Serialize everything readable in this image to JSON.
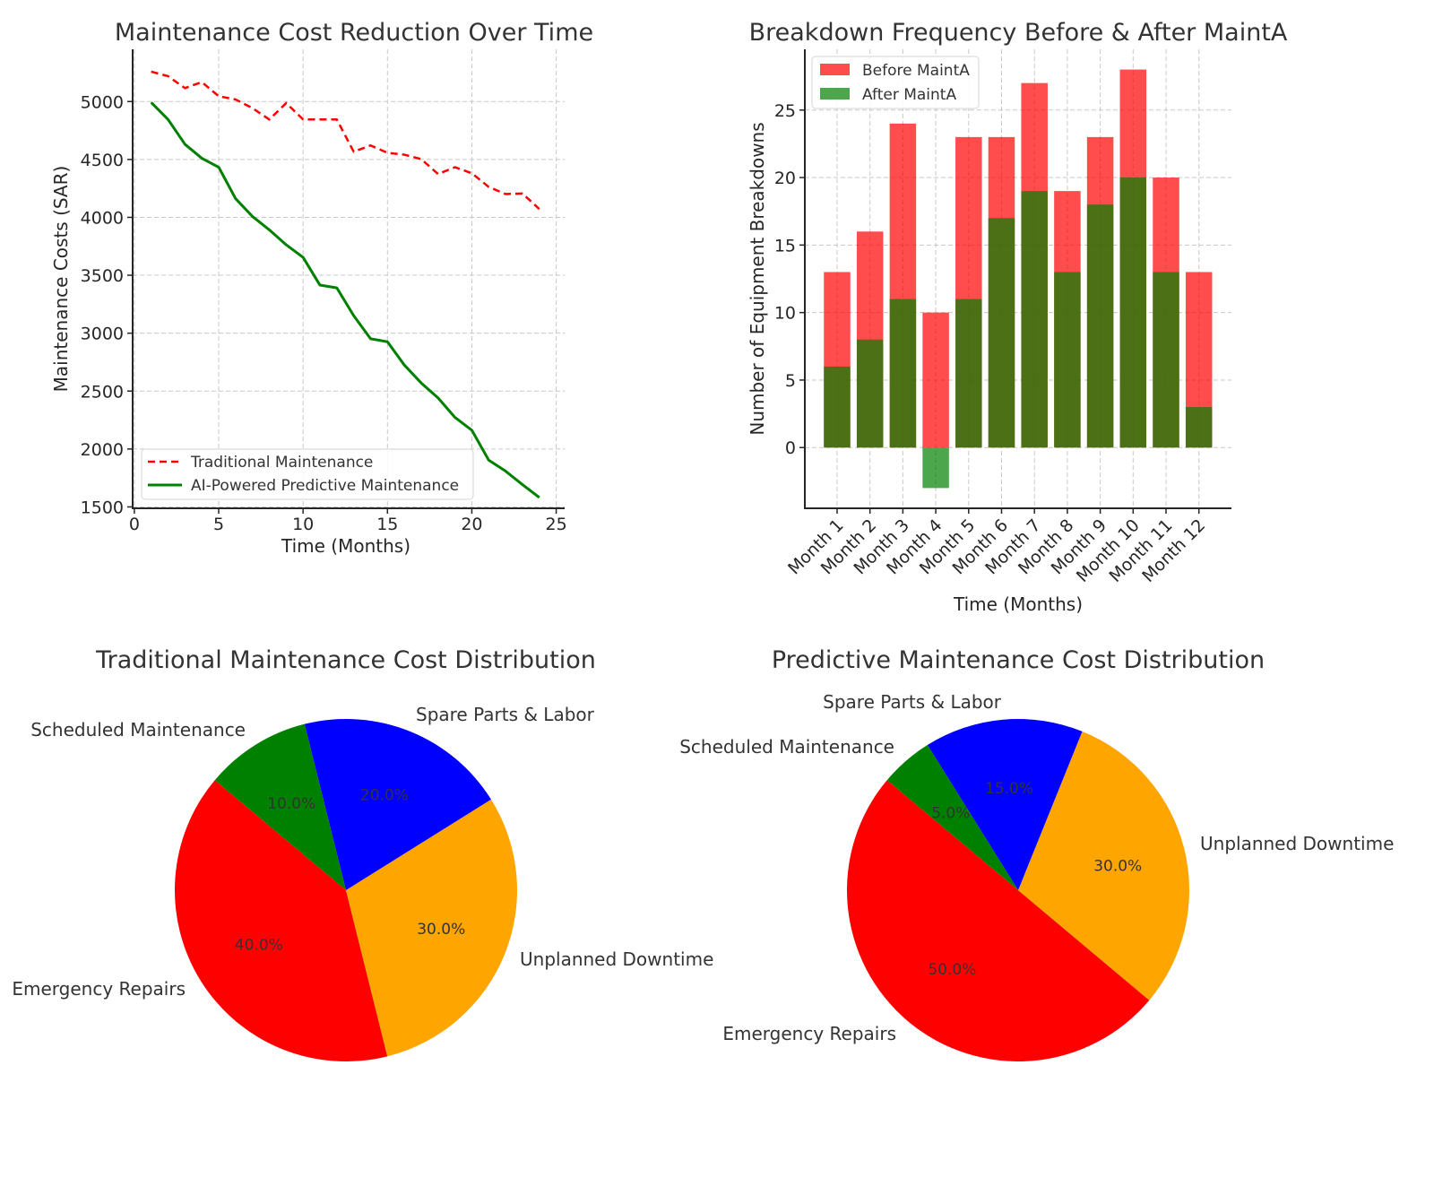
{
  "chart_data": [
    {
      "type": "line",
      "title": "Maintenance Cost Reduction Over Time",
      "xlabel": "Time (Months)",
      "ylabel": "Maintenance Costs (SAR)",
      "xlim": [
        -0.1,
        25.5
      ],
      "ylim": [
        1488,
        5451
      ],
      "xticks": [
        0,
        5,
        10,
        15,
        20,
        25
      ],
      "yticks": [
        1500,
        2000,
        2500,
        3000,
        3500,
        4000,
        4500,
        5000
      ],
      "grid": true,
      "legend_position": "lower-left",
      "x": [
        1,
        2,
        3,
        4,
        5,
        6,
        7,
        8,
        9,
        10,
        11,
        12,
        13,
        14,
        15,
        16,
        17,
        18,
        19,
        20,
        21,
        22,
        23,
        24
      ],
      "series": [
        {
          "name": "Traditional Maintenance",
          "color": "#ff0000",
          "style": "dashed",
          "values": [
            5258,
            5219,
            5116,
            5168,
            5046,
            5018,
            4943,
            4845,
            4987,
            4845,
            4845,
            4845,
            4567,
            4621,
            4557,
            4541,
            4503,
            4374,
            4433,
            4381,
            4263,
            4201,
            4206,
            4072
          ]
        },
        {
          "name": "AI-Powered Predictive Maintenance",
          "color": "#008000",
          "style": "solid",
          "values": [
            4992,
            4845,
            4631,
            4510,
            4433,
            4162,
            4008,
            3892,
            3763,
            3655,
            3415,
            3391,
            3151,
            2952,
            2926,
            2725,
            2570,
            2441,
            2273,
            2162,
            1904,
            1809,
            1693,
            1581
          ]
        }
      ]
    },
    {
      "type": "bar",
      "title": "Breakdown Frequency Before & After MaintA",
      "xlabel": "Time (Months)",
      "ylabel": "Number of Equipment Breakdowns",
      "ylim": [
        -4.5,
        29.5
      ],
      "yticks": [
        0,
        5,
        10,
        15,
        20,
        25
      ],
      "grid": true,
      "legend_position": "top-left",
      "categories": [
        "Month 1",
        "Month 2",
        "Month 3",
        "Month 4",
        "Month 5",
        "Month 6",
        "Month 7",
        "Month 8",
        "Month 9",
        "Month 10",
        "Month 11",
        "Month 12"
      ],
      "series": [
        {
          "name": "Before MaintA",
          "color": "#ff0000",
          "alpha": 0.7,
          "values": [
            13,
            16,
            24,
            10,
            23,
            23,
            27,
            19,
            23,
            28,
            20,
            13
          ]
        },
        {
          "name": "After MaintA",
          "color": "#008000",
          "alpha": 0.7,
          "values": [
            6,
            8,
            11,
            -3,
            11,
            17,
            19,
            13,
            18,
            20,
            13,
            3
          ]
        }
      ]
    },
    {
      "type": "pie",
      "title": "Traditional Maintenance Cost Distribution",
      "start_angle_deg": 140,
      "labels": [
        "Emergency Repairs",
        "Unplanned Downtime",
        "Spare Parts & Labor",
        "Scheduled Maintenance"
      ],
      "values": [
        40,
        30,
        20,
        10
      ],
      "pct_labels": [
        "40.0%",
        "30.0%",
        "20.0%",
        "10.0%"
      ],
      "colors": [
        "#ff0000",
        "#ffa500",
        "#0000ff",
        "#008000"
      ]
    },
    {
      "type": "pie",
      "title": "Predictive Maintenance Cost Distribution",
      "start_angle_deg": 140,
      "labels": [
        "Emergency Repairs",
        "Unplanned Downtime",
        "Spare Parts & Labor",
        "Scheduled Maintenance"
      ],
      "values": [
        50,
        30,
        15,
        5
      ],
      "pct_labels": [
        "50.0%",
        "30.0%",
        "15.0%",
        "5.0%"
      ],
      "colors": [
        "#ff0000",
        "#ffa500",
        "#0000ff",
        "#008000"
      ]
    }
  ]
}
